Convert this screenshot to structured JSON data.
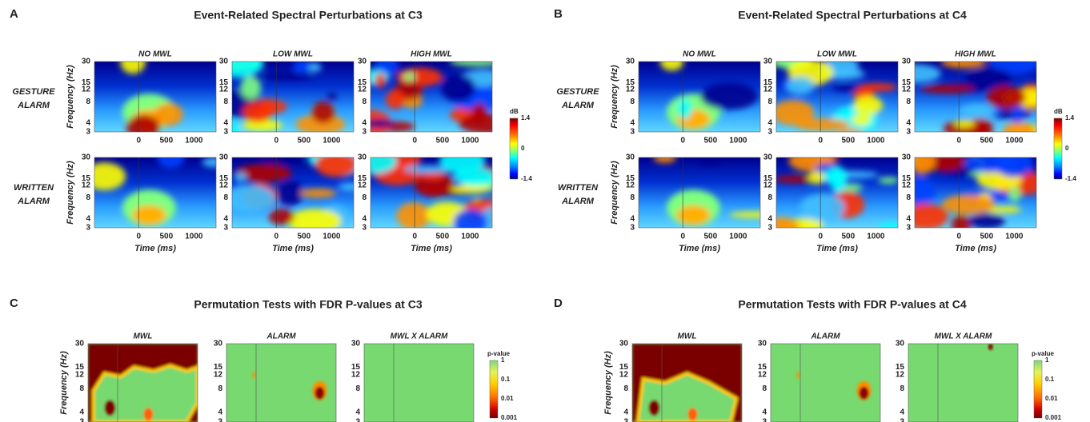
{
  "panels": [
    {
      "letter": "A",
      "title": "Event-Related Spectral Perturbations at C3",
      "columns": [
        "NO MWL",
        "LOW MWL",
        "HIGH MWL"
      ],
      "rows": [
        [
          "GESTURE",
          "ALARM"
        ],
        [
          "WRITTEN",
          "ALARM"
        ]
      ],
      "y_label": "Frequency (Hz)",
      "yticks": [
        30,
        15,
        12,
        8,
        4,
        3
      ],
      "ylim": [
        3,
        30
      ],
      "xticks": [
        0,
        500,
        1000
      ],
      "xlim": [
        -800,
        1400
      ],
      "x_label": "Time (ms)",
      "colorbar": {
        "label": "dB",
        "ticks": [
          1.4,
          0,
          -1.4
        ]
      }
    },
    {
      "letter": "B",
      "title": "Event-Related Spectral Perturbations at C4",
      "columns": [
        "NO MWL",
        "LOW MWL",
        "HIGH MWL"
      ],
      "rows": [
        [
          "GESTURE",
          "ALARM"
        ],
        [
          "WRITTEN",
          "ALARM"
        ]
      ],
      "y_label": "Frequency (Hz)",
      "yticks": [
        30,
        15,
        12,
        8,
        4,
        3
      ],
      "ylim": [
        3,
        30
      ],
      "xticks": [
        0,
        500,
        1000
      ],
      "xlim": [
        -800,
        1400
      ],
      "x_label": "Time (ms)",
      "colorbar": {
        "label": "dB",
        "ticks": [
          1.4,
          0,
          -1.4
        ]
      }
    },
    {
      "letter": "C",
      "title": "Permutation Tests with FDR P-values at C3",
      "columns": [
        "MWL",
        "ALARM",
        "MWL X ALARM"
      ],
      "y_label": "Frequency (Hz)",
      "yticks": [
        30,
        15,
        12,
        8,
        4,
        3
      ],
      "ylim": [
        3,
        30
      ],
      "colorbar": {
        "label": "p-value",
        "ticks": [
          1,
          0.1,
          0.01,
          0.001
        ]
      }
    },
    {
      "letter": "D",
      "title": "Permutation Tests with FDR P-values at C4",
      "columns": [
        "MWL",
        "ALARM",
        "MWL X ALARM"
      ],
      "y_label": "Frequency (Hz)",
      "yticks": [
        30,
        15,
        12,
        8,
        4,
        3
      ],
      "ylim": [
        3,
        30
      ],
      "colorbar": {
        "label": "p-value",
        "ticks": [
          1,
          0.1,
          0.01,
          0.001
        ]
      }
    }
  ]
}
